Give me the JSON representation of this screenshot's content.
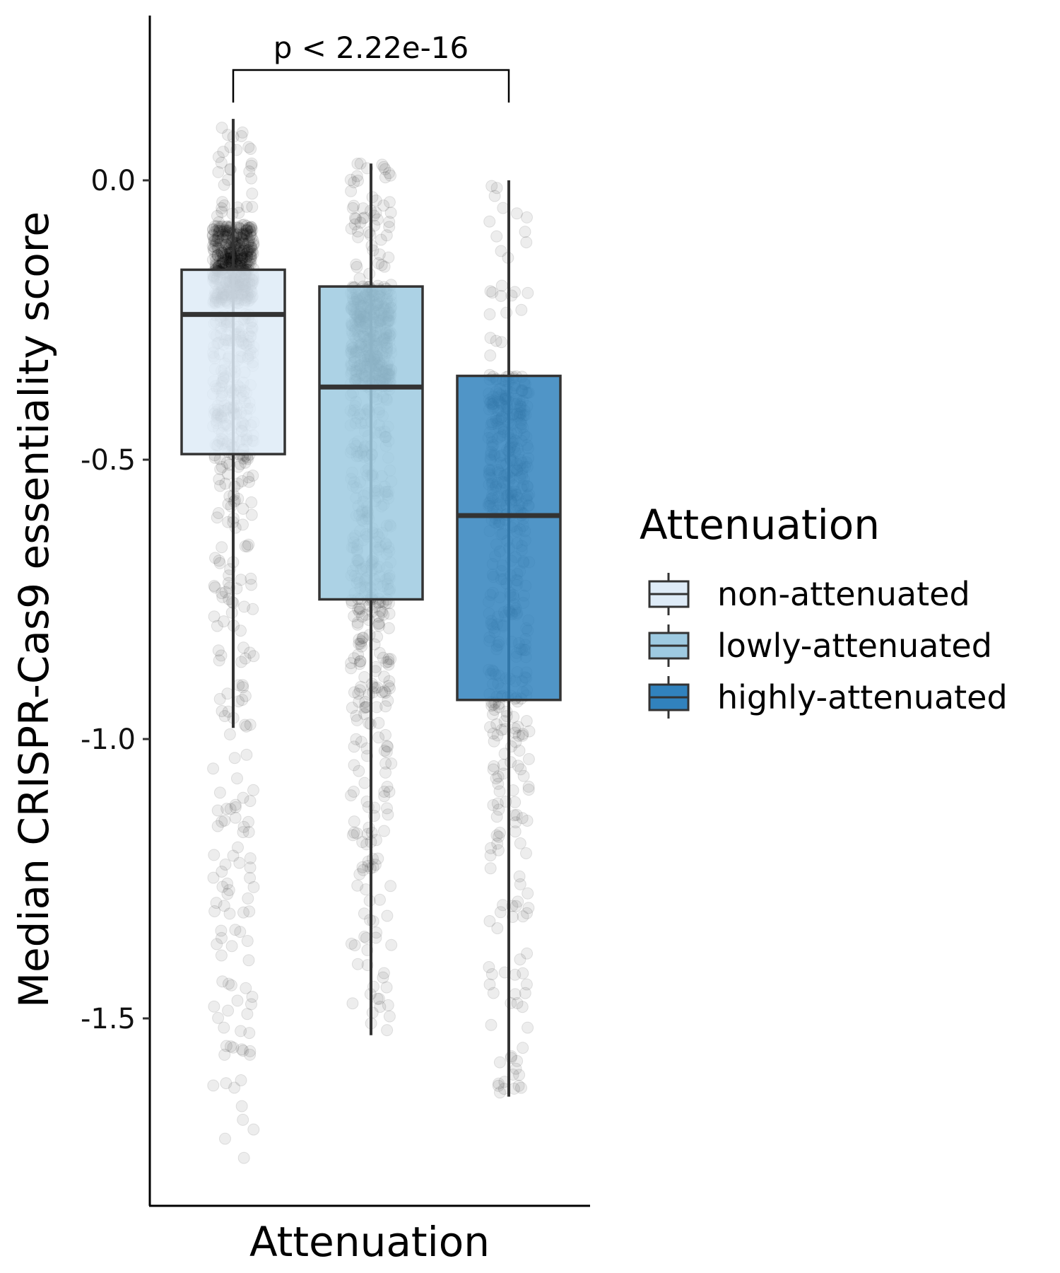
{
  "chart_data": {
    "type": "boxplot",
    "title": "",
    "xlabel": "Attenuation",
    "ylabel": "Median CRISPR-Cas9 essentiality score",
    "ylim": [
      -1.85,
      0.3
    ],
    "yticks": [
      0.0,
      -0.5,
      -1.0,
      -1.5
    ],
    "ytick_labels": [
      "0.0",
      "-0.5",
      "-1.0",
      "-1.5"
    ],
    "grid": false,
    "legend": {
      "title": "Attenuation",
      "position": "right"
    },
    "annotation": {
      "text": "p < 2.22e-16",
      "from_group": 0,
      "to_group": 2
    },
    "series": [
      {
        "name": "non-attenuated",
        "color": "#deebf7",
        "q1": -0.49,
        "median": -0.24,
        "q3": -0.16,
        "whisker_low": -0.98,
        "whisker_high": 0.11,
        "points_min": -1.75,
        "points_max": 0.11
      },
      {
        "name": "lowly-attenuated",
        "color": "#9ecae1",
        "q1": -0.75,
        "median": -0.37,
        "q3": -0.19,
        "whisker_low": -1.53,
        "whisker_high": 0.03,
        "points_min": -1.53,
        "points_max": 0.03
      },
      {
        "name": "highly-attenuated",
        "color": "#3182bd",
        "q1": -0.93,
        "median": -0.6,
        "q3": -0.35,
        "whisker_low": -1.64,
        "whisker_high": 0.0,
        "points_min": -1.64,
        "points_max": 0.0
      }
    ]
  }
}
